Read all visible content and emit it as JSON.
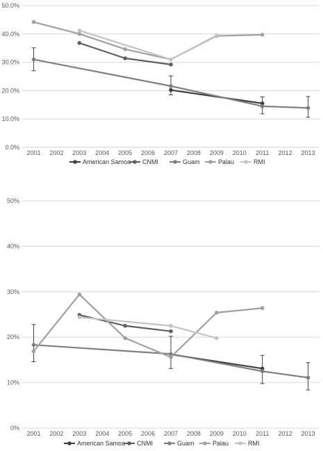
{
  "chart_data": [
    {
      "type": "line",
      "title": "",
      "xlabel": "",
      "ylabel": "",
      "ylim": [
        0,
        50
      ],
      "y_ticks": [
        "0.0%",
        "10.0%",
        "20.0%",
        "30.0%",
        "40.0%",
        "50.0%"
      ],
      "x_ticks": [
        "2001",
        "2002",
        "2003",
        "2004",
        "2005",
        "2006",
        "2007",
        "2008",
        "2009",
        "2010",
        "2011",
        "2012",
        "2013"
      ],
      "grid": true,
      "legend_position": "bottom",
      "series": [
        {
          "name": "American Samoa",
          "color": "#404040",
          "x": [
            2007,
            2011
          ],
          "values": [
            20.2,
            15.5
          ]
        },
        {
          "name": "CNMI",
          "color": "#5f5f5f",
          "x": [
            2003,
            2005,
            2007
          ],
          "values": [
            36.8,
            31.4,
            29.2
          ]
        },
        {
          "name": "Guam",
          "color": "#7f7f7f",
          "x": [
            2001,
            2007,
            2011,
            2013
          ],
          "values": [
            31.0,
            21.6,
            14.5,
            13.9
          ],
          "error_low": [
            27.0,
            18.5,
            11.8,
            10.6
          ],
          "error_high": [
            35.1,
            25.2,
            17.8,
            17.9
          ]
        },
        {
          "name": "Palau",
          "color": "#a0a0a0",
          "x": [
            2001,
            2003,
            2005,
            2007,
            2009,
            2011
          ],
          "values": [
            44.2,
            40.0,
            34.6,
            31.0,
            39.3,
            39.7
          ]
        },
        {
          "name": "RMI",
          "color": "#c4c4c4",
          "x": [
            2003,
            2007,
            2009
          ],
          "values": [
            41.2,
            31.0,
            39.5
          ]
        }
      ]
    },
    {
      "type": "line",
      "title": "",
      "xlabel": "",
      "ylabel": "",
      "ylim": [
        0,
        50
      ],
      "y_ticks": [
        "0%",
        "10%",
        "20%",
        "30%",
        "40%",
        "50%"
      ],
      "x_ticks": [
        "2001",
        "2002",
        "2003",
        "2004",
        "2005",
        "2006",
        "2007",
        "2008",
        "2009",
        "2010",
        "2011",
        "2012",
        "2013"
      ],
      "grid": true,
      "legend_position": "bottom",
      "series": [
        {
          "name": "American Samoa",
          "color": "#404040",
          "x": [
            2007,
            2011
          ],
          "values": [
            16.2,
            13.1
          ]
        },
        {
          "name": "CNMI",
          "color": "#5f5f5f",
          "x": [
            2003,
            2005,
            2007
          ],
          "values": [
            24.9,
            22.5,
            21.3
          ]
        },
        {
          "name": "Guam",
          "color": "#7f7f7f",
          "x": [
            2001,
            2007,
            2011,
            2013
          ],
          "values": [
            18.3,
            16.3,
            12.5,
            11.1
          ],
          "error_low": [
            14.6,
            13.1,
            9.8,
            8.4
          ],
          "error_high": [
            22.8,
            20.2,
            16.0,
            14.4
          ]
        },
        {
          "name": "Palau",
          "color": "#a0a0a0",
          "x": [
            2001,
            2003,
            2005,
            2007,
            2009,
            2011
          ],
          "values": [
            16.9,
            29.4,
            19.8,
            15.6,
            25.4,
            26.4
          ]
        },
        {
          "name": "RMI",
          "color": "#c4c4c4",
          "x": [
            2003,
            2007,
            2009
          ],
          "values": [
            24.4,
            22.5,
            19.8
          ]
        }
      ]
    }
  ]
}
